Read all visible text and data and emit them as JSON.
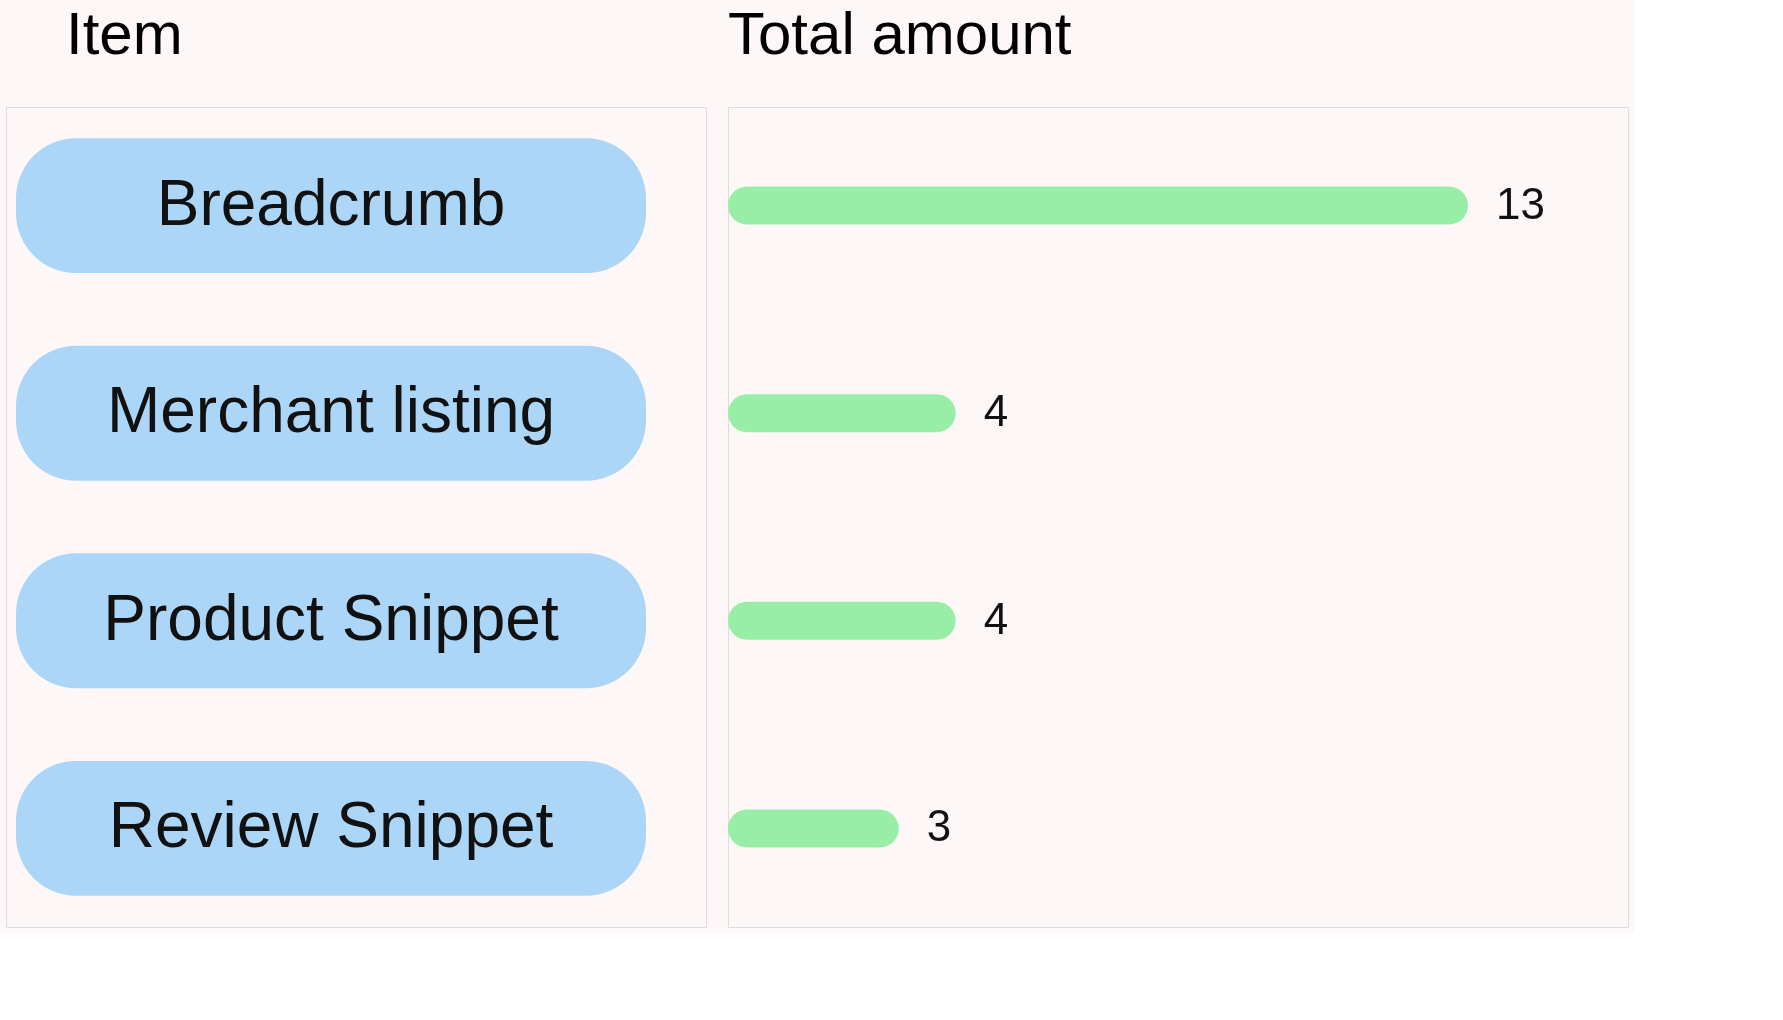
{
  "chart_data": {
    "type": "bar",
    "orientation": "horizontal",
    "ylabel": "Item",
    "xlabel": "Total amount",
    "categories": [
      "Breadcrumb",
      "Merchant listing",
      "Product Snippet",
      "Review Snippet"
    ],
    "values": [
      13,
      4,
      4,
      3
    ],
    "color": "#98eda7",
    "data_labels": true
  }
}
